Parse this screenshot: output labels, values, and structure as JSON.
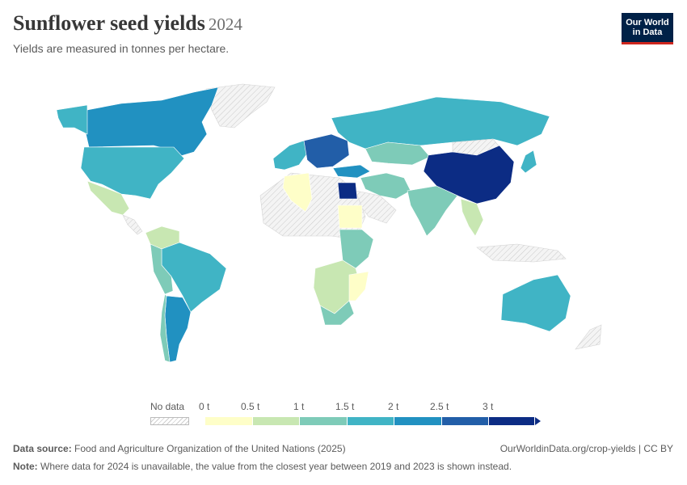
{
  "header": {
    "title": "Sunflower seed yields",
    "year": "2024",
    "subtitle": "Yields are measured in tonnes per hectare."
  },
  "logo": {
    "line1": "Our World",
    "line2": "in Data"
  },
  "legend": {
    "no_data_label": "No data",
    "ticks": [
      "0 t",
      "0.5 t",
      "1 t",
      "1.5 t",
      "2 t",
      "2.5 t",
      "3 t"
    ],
    "colors": [
      "#fefec8",
      "#c8e7b2",
      "#7ecbb8",
      "#40b4c5",
      "#2191c1",
      "#225ea8",
      "#0c2c84"
    ],
    "no_data_color": "#e8e8e8"
  },
  "footer": {
    "source_label": "Data source:",
    "source_text": " Food and Agriculture Organization of the United Nations (2025)",
    "url": "OurWorldinData.org/crop-yields | CC BY",
    "note_label": "Note:",
    "note_text": " Where data for 2024 is unavailable, the value from the closest year between 2019 and 2023 is shown instead."
  }
}
